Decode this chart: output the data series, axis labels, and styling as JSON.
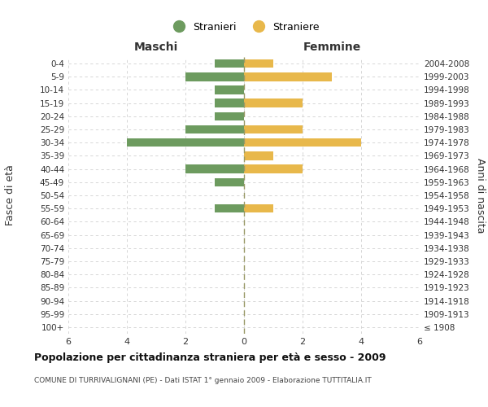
{
  "age_groups": [
    "100+",
    "95-99",
    "90-94",
    "85-89",
    "80-84",
    "75-79",
    "70-74",
    "65-69",
    "60-64",
    "55-59",
    "50-54",
    "45-49",
    "40-44",
    "35-39",
    "30-34",
    "25-29",
    "20-24",
    "15-19",
    "10-14",
    "5-9",
    "0-4"
  ],
  "birth_years": [
    "≤ 1908",
    "1909-1913",
    "1914-1918",
    "1919-1923",
    "1924-1928",
    "1929-1933",
    "1934-1938",
    "1939-1943",
    "1944-1948",
    "1949-1953",
    "1954-1958",
    "1959-1963",
    "1964-1968",
    "1969-1973",
    "1974-1978",
    "1979-1983",
    "1984-1988",
    "1989-1993",
    "1994-1998",
    "1999-2003",
    "2004-2008"
  ],
  "maschi": [
    0,
    0,
    0,
    0,
    0,
    0,
    0,
    0,
    0,
    1,
    0,
    1,
    2,
    0,
    4,
    2,
    1,
    1,
    1,
    2,
    1
  ],
  "femmine": [
    0,
    0,
    0,
    0,
    0,
    0,
    0,
    0,
    0,
    1,
    0,
    0,
    2,
    1,
    4,
    2,
    0,
    2,
    0,
    3,
    1
  ],
  "color_maschi": "#6d9b5f",
  "color_femmine": "#e8b84b",
  "xlim": 6,
  "title": "Popolazione per cittadinanza straniera per età e sesso - 2009",
  "subtitle": "COMUNE DI TURRIVALIGNANI (PE) - Dati ISTAT 1° gennaio 2009 - Elaborazione TUTTITALIA.IT",
  "ylabel_left": "Fasce di età",
  "ylabel_right": "Anni di nascita",
  "xlabel_maschi": "Maschi",
  "xlabel_femmine": "Femmine",
  "legend_stranieri": "Stranieri",
  "legend_straniere": "Straniere",
  "background_color": "#ffffff",
  "grid_color": "#d0d0d0",
  "zero_line_color": "#999966"
}
